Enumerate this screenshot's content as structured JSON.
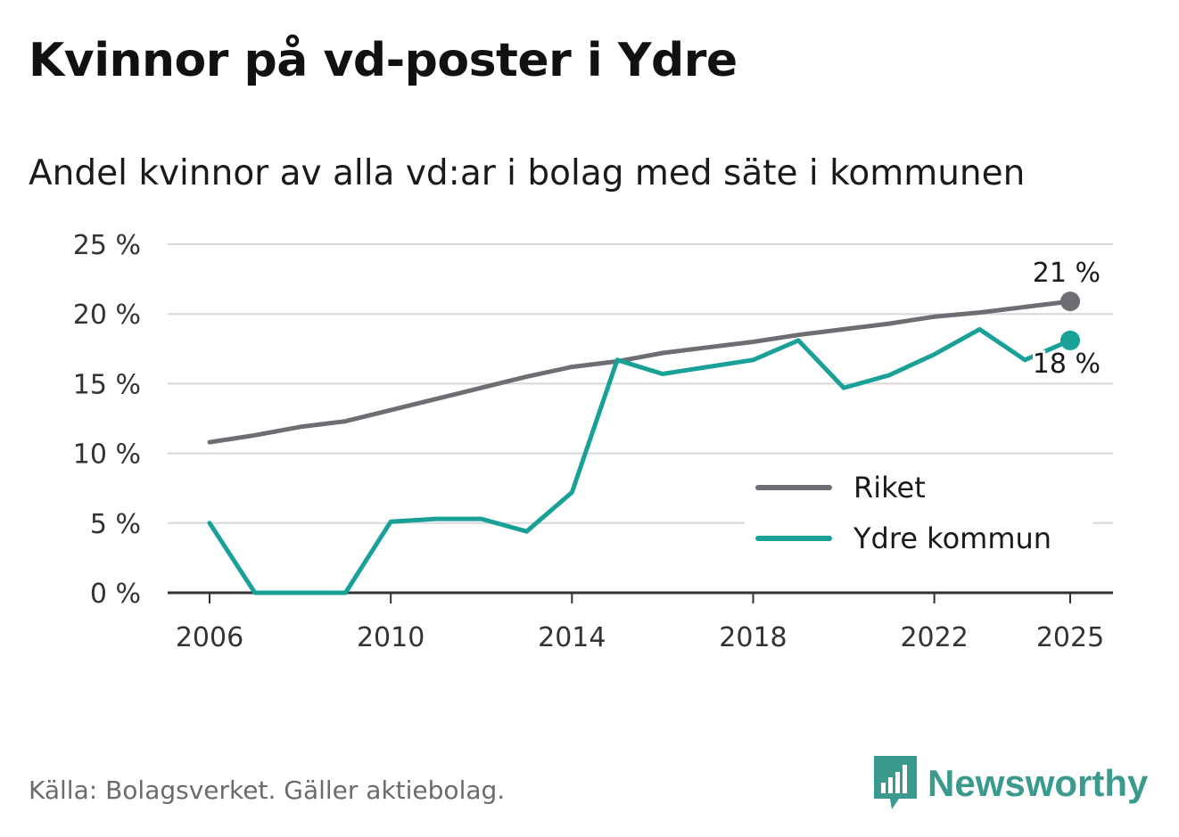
{
  "header": {
    "title": "Kvinnor på vd-poster i Ydre",
    "subtitle": "Andel kvinnor av alla vd:ar i bolag med säte i kommunen"
  },
  "footer": {
    "source": "Källa: Bolagsverket. Gäller aktiebolag.",
    "brand": "Newsworthy",
    "brand_icon": "bar-chart-logo-icon"
  },
  "colors": {
    "riket": "#6e6d73",
    "ydre": "#1aa197",
    "grid": "#d8d8d8",
    "axis": "#333333",
    "brand": "#3a9a8e"
  },
  "chart_data": {
    "type": "line",
    "title": "Kvinnor på vd-poster i Ydre",
    "subtitle": "Andel kvinnor av alla vd:ar i bolag med säte i kommunen",
    "xlabel": "",
    "ylabel": "",
    "x": [
      2006,
      2007,
      2008,
      2009,
      2010,
      2011,
      2012,
      2013,
      2014,
      2015,
      2016,
      2017,
      2018,
      2019,
      2020,
      2021,
      2022,
      2023,
      2024,
      2025
    ],
    "xlim": [
      2006,
      2025
    ],
    "ylim": [
      0,
      25
    ],
    "xticks": [
      2006,
      2010,
      2014,
      2018,
      2022,
      2025
    ],
    "xtick_labels": [
      "2006",
      "2010",
      "2014",
      "2018",
      "2022",
      "2025"
    ],
    "yticks": [
      0,
      5,
      10,
      15,
      20,
      25
    ],
    "ytick_labels": [
      "0 %",
      "5 %",
      "10 %",
      "15 %",
      "20 %",
      "25 %"
    ],
    "grid": true,
    "legend_position": "bottom-right",
    "series": [
      {
        "name": "Riket",
        "values": [
          10.8,
          11.3,
          11.9,
          12.3,
          13.1,
          13.9,
          14.7,
          15.5,
          16.2,
          16.6,
          17.2,
          17.6,
          18.0,
          18.5,
          18.9,
          19.3,
          19.8,
          20.1,
          20.5,
          20.9
        ],
        "end_label": "21 %"
      },
      {
        "name": "Ydre kommun",
        "values": [
          5.0,
          0.0,
          0.0,
          0.0,
          5.1,
          5.3,
          5.3,
          4.4,
          7.2,
          16.7,
          15.7,
          16.2,
          16.7,
          18.1,
          14.7,
          15.6,
          17.1,
          18.9,
          16.7,
          18.1
        ],
        "end_label": "18 %"
      }
    ]
  }
}
